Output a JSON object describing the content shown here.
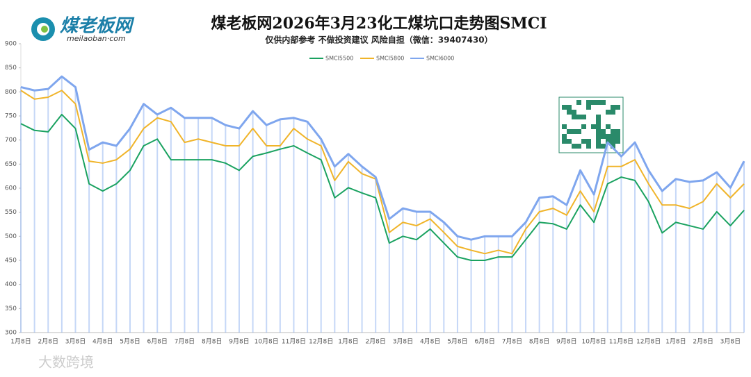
{
  "logo": {
    "name": "煤老板网",
    "url": "meilaoban·com"
  },
  "watermark": "大数跨境",
  "chart_data": {
    "type": "line",
    "title": "煤老板网2026年3月23化工煤坑口走势图SMCI",
    "subtitle": "仅供内部参考 不做投资建议 风险自担（微信：39407430）",
    "categories": [
      "1月8日",
      null,
      "2月8日",
      null,
      "3月8日",
      null,
      "4月8日",
      null,
      "5月8日",
      null,
      "6月8日",
      null,
      "7月8日",
      null,
      "8月8日",
      null,
      "9月8日",
      null,
      "10月8日",
      null,
      "11月8日",
      null,
      "12月8日",
      null,
      "1月8日",
      null,
      "2月8日",
      null,
      "3月8日",
      null,
      "4月8日",
      null,
      "5月8日",
      null,
      "6月8日",
      null,
      "7月8日",
      null,
      "8月8日",
      null,
      "9月8日",
      null,
      "10月8日",
      null,
      "11月8日",
      null,
      "12月8日",
      null,
      "1月8日",
      null,
      "2月8日",
      null,
      "3月8日",
      null
    ],
    "series": [
      {
        "name": "SMCI5500",
        "color": "#1aa260",
        "values": [
          734,
          720,
          717,
          753,
          724,
          609,
          594,
          609,
          637,
          688,
          702,
          659,
          659,
          659,
          659,
          652,
          637,
          666,
          673,
          681,
          688,
          673,
          659,
          580,
          601,
          590,
          580,
          486,
          500,
          493,
          515,
          486,
          457,
          450,
          450,
          457,
          457,
          493,
          529,
          526,
          515,
          565,
          529,
          609,
          623,
          616,
          572,
          507,
          529,
          522,
          515,
          551,
          522,
          554
        ]
      },
      {
        "name": "SMCI5800",
        "color": "#f0b429",
        "values": [
          803,
          785,
          789,
          803,
          775,
          656,
          652,
          659,
          681,
          724,
          746,
          738,
          695,
          702,
          695,
          688,
          688,
          724,
          688,
          688,
          724,
          702,
          688,
          616,
          655,
          630,
          619,
          508,
          529,
          522,
          536,
          508,
          479,
          471,
          464,
          471,
          464,
          515,
          551,
          558,
          544,
          594,
          551,
          645,
          645,
          659,
          609,
          565,
          565,
          558,
          572,
          609,
          580,
          609
        ]
      },
      {
        "name": "SMCI6000",
        "color": "#7fa6ee",
        "values": [
          810,
          803,
          806,
          832,
          810,
          680,
          695,
          688,
          724,
          775,
          753,
          767,
          746,
          746,
          746,
          731,
          724,
          760,
          731,
          743,
          746,
          738,
          702,
          645,
          671,
          645,
          623,
          536,
          558,
          551,
          551,
          529,
          500,
          493,
          500,
          500,
          500,
          529,
          580,
          583,
          565,
          637,
          587,
          695,
          666,
          695,
          637,
          594,
          619,
          613,
          616,
          633,
          601,
          656
        ]
      }
    ],
    "ylim": [
      300,
      900
    ],
    "yticks": [
      300,
      350,
      400,
      450,
      500,
      550,
      600,
      650,
      700,
      750,
      800,
      850,
      900
    ],
    "legend": "top"
  }
}
